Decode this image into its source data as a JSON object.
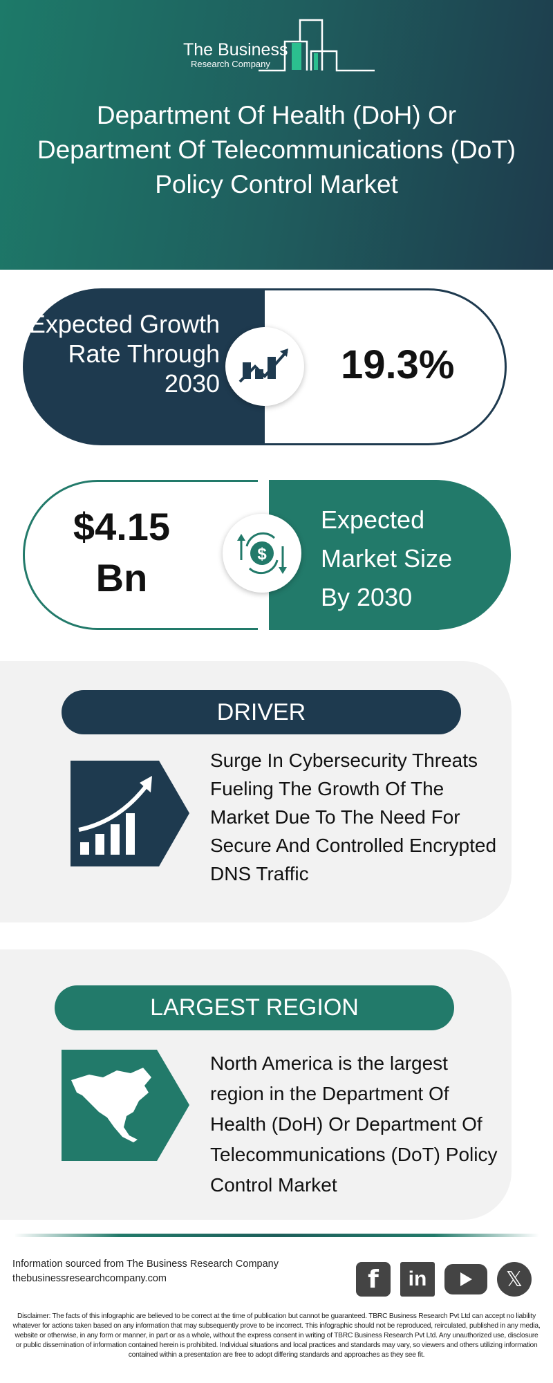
{
  "logo": {
    "line1": "The Business",
    "line2": "Research Company"
  },
  "header": {
    "title": "Department Of Health (DoH) Or Department Of Telecommunications (DoT) Policy Control Market"
  },
  "growth": {
    "label": "Expected Growth Rate Through 2030",
    "value": "19.3%",
    "icon": "growth-chart-icon"
  },
  "market_size": {
    "value": "$4.15 Bn",
    "label": "Expected Market Size By 2030",
    "icon": "dollar-exchange-icon"
  },
  "driver": {
    "heading": "DRIVER",
    "text": "Surge In Cybersecurity Threats Fueling The Growth Of The Market Due To The Need For Secure And Controlled Encrypted DNS Traffic",
    "icon": "rising-bars-icon"
  },
  "region": {
    "heading": "LARGEST REGION",
    "text": "North America is the largest region in the Department Of Health (DoH) Or Department Of Telecommunications (DoT) Policy Control Market",
    "icon": "north-america-map-icon"
  },
  "footer": {
    "source": "Information sourced from The Business Research Company",
    "website": "thebusinessresearchcompany.com",
    "social": [
      "facebook",
      "linkedin",
      "youtube",
      "x"
    ],
    "disclaimer": "Disclaimer: The facts of this infographic are believed to be correct at the time of publication but cannot be guaranteed. TBRC Business Research Pvt Ltd can accept no liability whatever for actions taken based on any information that may subsequently prove to be incorrect. This infographic should not be reproduced, reirculated, published in any media, website or otherwise, in any form or manner, in part or as a whole, without the express consent in writing of TBRC Business Research Pvt Ltd. Any unauthorized use, disclosure or public dissemination of information contained herein is prohibited. Individual situations and local practices and standards may vary, so viewers and others utilizing information contained within a presentation are free to adopt differing standards and approaches as they see fit."
  },
  "colors": {
    "dark_navy": "#1e3a4f",
    "teal": "#227a6a",
    "light_gray": "#f2f2f2"
  }
}
